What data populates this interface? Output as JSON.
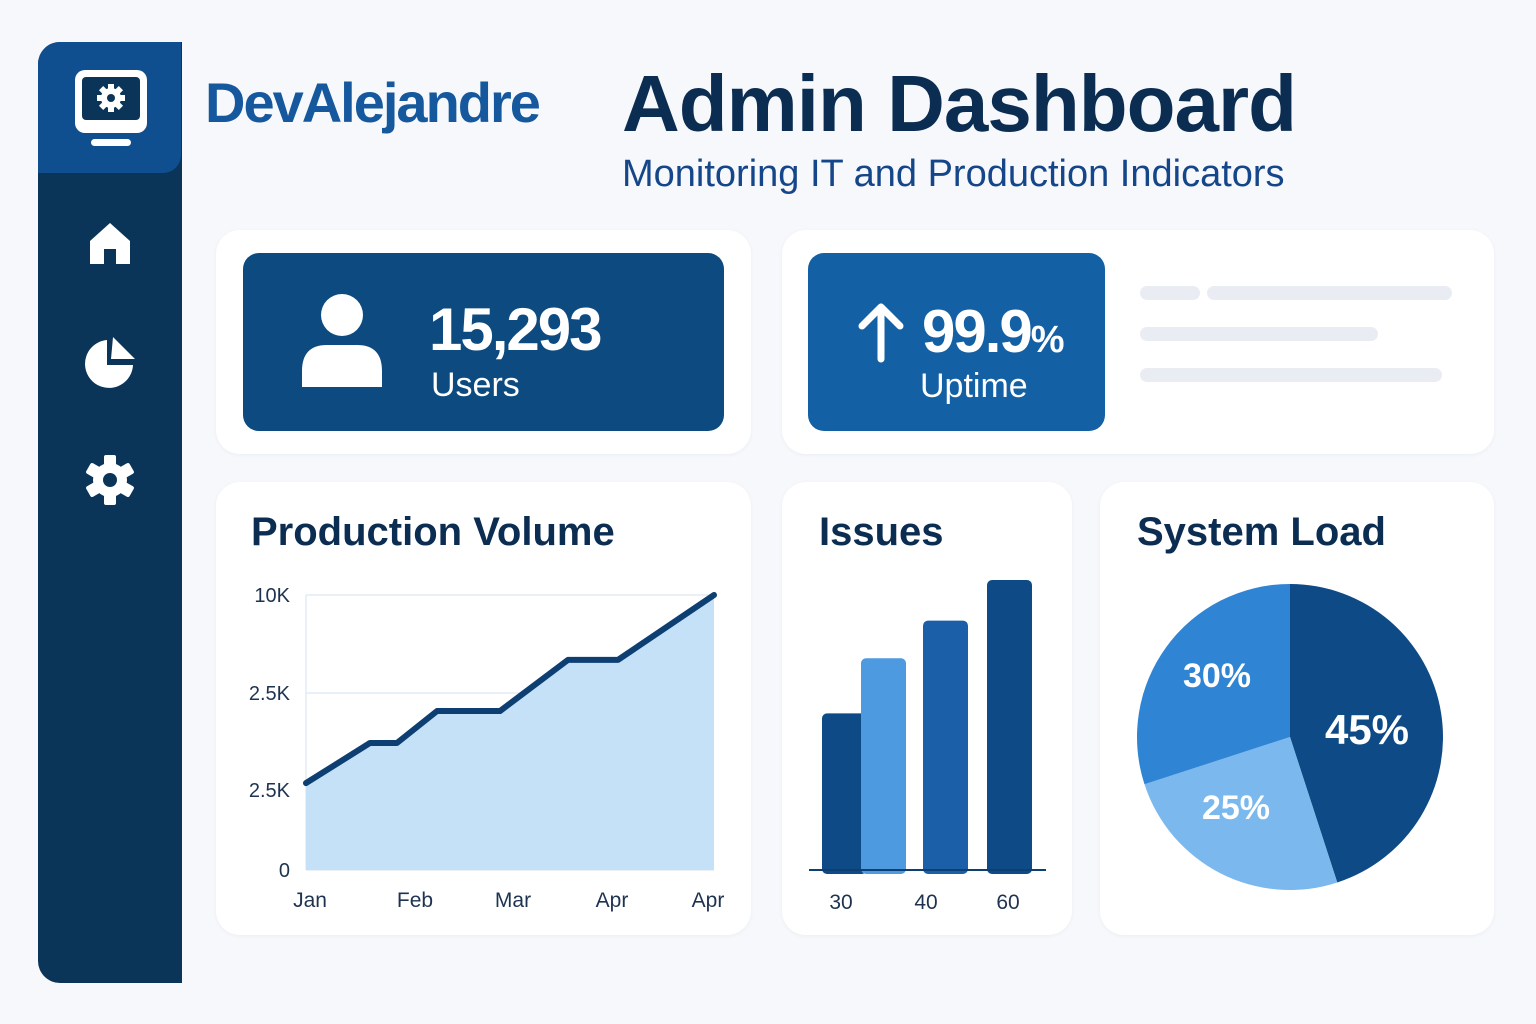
{
  "brand": "DevAlejandre",
  "header": {
    "title": "Admin Dashboard",
    "subtitle": "Monitoring IT and Production Indicators"
  },
  "sidebar": {
    "items": [
      {
        "icon": "home-icon"
      },
      {
        "icon": "pie-chart-icon"
      },
      {
        "icon": "gear-icon"
      }
    ]
  },
  "kpis": {
    "users": {
      "value": "15,293",
      "label": "Users",
      "color": "#0c4a80"
    },
    "uptime": {
      "value": "99.9",
      "unit": "%",
      "label": "Uptime",
      "color": "#1460a4"
    }
  },
  "chart_data": [
    {
      "type": "area",
      "title": "Production Volume",
      "x": [
        "Jan",
        "",
        "Feb",
        "",
        "Mar",
        "",
        "Apr",
        "Apr"
      ],
      "xtick_labels": [
        "Jan",
        "Feb",
        "Mar",
        "Apr",
        "Apr"
      ],
      "ytick_labels": [
        "10K",
        "2.5K",
        "2.5K",
        "0"
      ],
      "values": [
        3160,
        4620,
        4620,
        5780,
        5780,
        7640,
        7640,
        10000
      ],
      "ylim": [
        0,
        10000
      ],
      "grid": true,
      "fill": "#c5e1f8",
      "line": "#0e3f73"
    },
    {
      "type": "bar",
      "title": "Issues",
      "xtick_labels": [
        "30",
        "40",
        "60"
      ],
      "values": [
        54,
        73,
        86,
        100
      ],
      "colors": [
        "#0e4a85",
        "#4d9ae0",
        "#1b5fa8",
        "#0e4a85"
      ]
    },
    {
      "type": "pie",
      "title": "System Load",
      "slices": [
        {
          "label": "45%",
          "value": 45,
          "color": "#0e4a85"
        },
        {
          "label": "25%",
          "value": 25,
          "color": "#7ab8ee"
        },
        {
          "label": "30%",
          "value": 30,
          "color": "#2f84d4"
        }
      ]
    }
  ]
}
